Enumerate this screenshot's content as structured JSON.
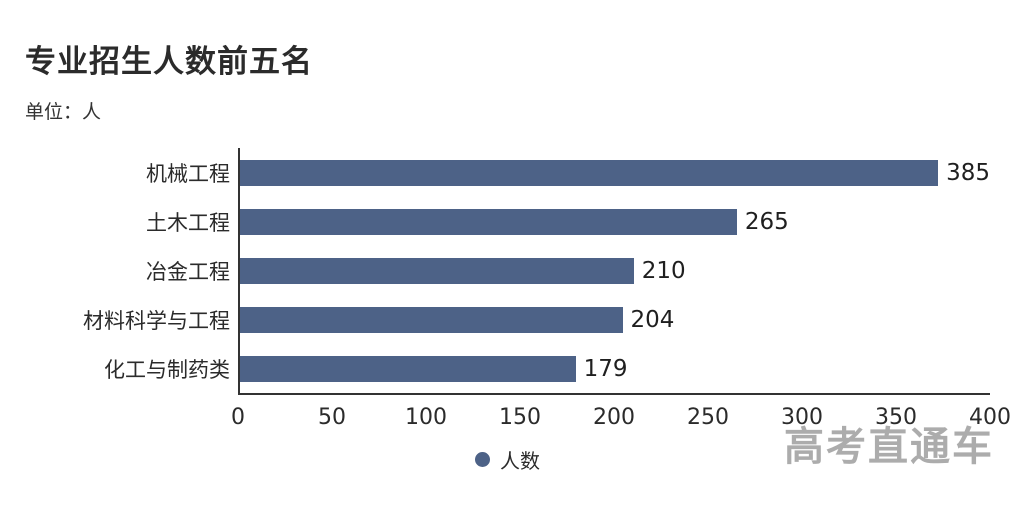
{
  "title": "专业招生人数前五名",
  "subtitle": "单位：人",
  "watermark": "高考直通车",
  "colors": {
    "bar": "#4d6287",
    "axis": "#333333",
    "text": "#2b2b2b",
    "watermark": "#9e9e9e"
  },
  "legend": {
    "label": "人数"
  },
  "chart_data": {
    "type": "bar",
    "orientation": "horizontal",
    "title": "专业招生人数前五名",
    "unit_note": "单位：人",
    "categories": [
      "机械工程",
      "土木工程",
      "冶金工程",
      "材料科学与工程",
      "化工与制药类"
    ],
    "values": [
      385,
      265,
      210,
      204,
      179
    ],
    "series_name": "人数",
    "xlabel": "",
    "ylabel": "",
    "xlim": [
      0,
      400
    ],
    "xticks": [
      0,
      50,
      100,
      150,
      200,
      250,
      300,
      350,
      400
    ],
    "grid": false,
    "legend_position": "bottom"
  }
}
